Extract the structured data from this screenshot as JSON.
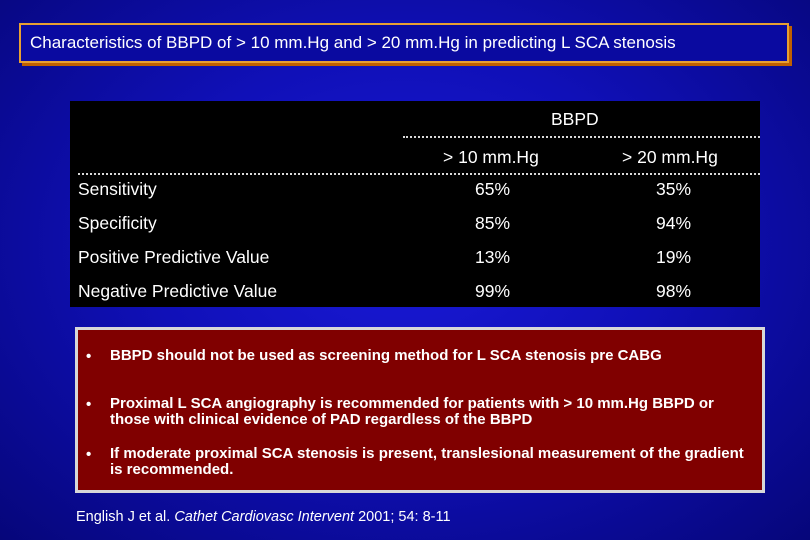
{
  "title": "Characteristics of BBPD of > 10 mm.Hg and > 20 mm.Hg in predicting L SCA stenosis",
  "table": {
    "group_header": "BBPD",
    "col1": "> 10 mm.Hg",
    "col2": "> 20 mm.Hg",
    "rows": [
      {
        "label": "Sensitivity",
        "v1": "65%",
        "v2": "35%"
      },
      {
        "label": "Specificity",
        "v1": "85%",
        "v2": "94%"
      },
      {
        "label": "Positive Predictive Value",
        "v1": "13%",
        "v2": "19%"
      },
      {
        "label": "Negative Predictive Value",
        "v1": "99%",
        "v2": "98%"
      }
    ]
  },
  "notes": [
    "BBPD should not be used as screening method for L SCA stenosis pre CABG",
    "Proximal L SCA angiography is recommended for patients with > 10 mm.Hg BBPD or those with clinical evidence of  PAD regardless of the BBPD",
    "If moderate proximal SCA stenosis is present, translesional measurement of the gradient is recommended."
  ],
  "bullet_char": "•",
  "citation": {
    "authors": "English J et al. ",
    "journal": "Cathet Cardiovasc Intervent",
    "details": " 2001; 54: 8-11"
  }
}
